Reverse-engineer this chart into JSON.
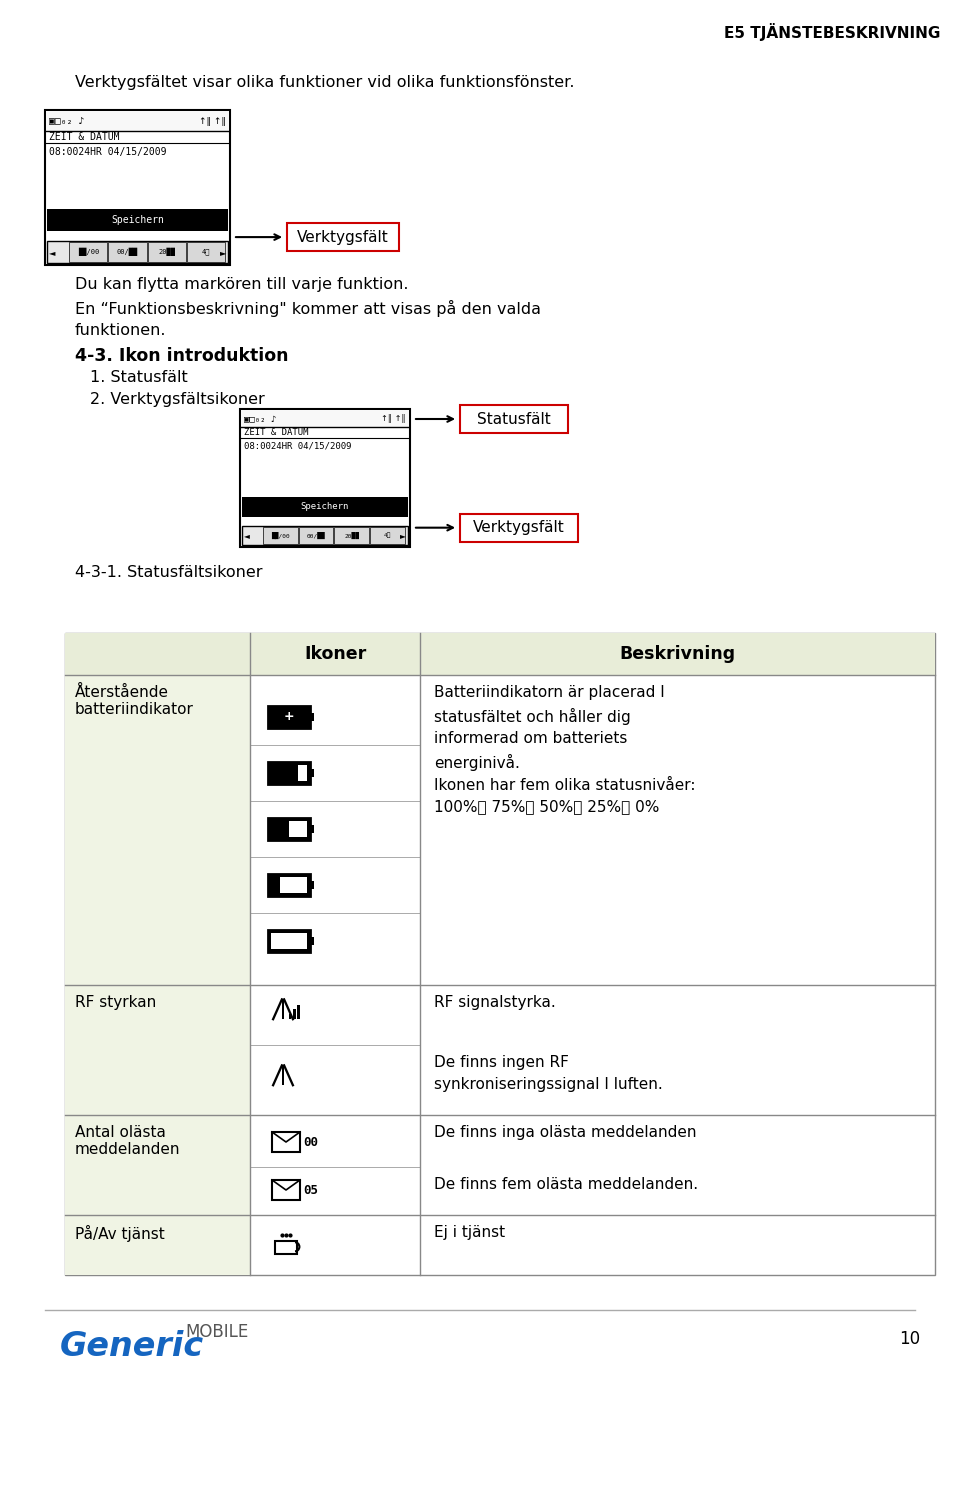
{
  "page_header": "E5 TJÄNSTEBESKRIVNING",
  "page_number": "10",
  "intro_text": "Verktygsfältet visar olika funktioner vid olika funktionsfönster.",
  "label_verktygsfalt_1": "Verktygsfält",
  "caption1": "Du kan flytta markören till varje funktion.",
  "caption2": "En “Funktionsbeskrivning\" kommer att visas på den valda",
  "caption3": "funktionen.",
  "section_header": "4-3. Ikon introduktion",
  "subsection1": "1. Statusfält",
  "subsection2": "2. Verktygsfältsikoner",
  "label_statusfalt": "Statusfält",
  "label_verktygsfalt_2": "Verktygsfält",
  "table_section": "4-3-1. Statusfältsikoner",
  "col1_header": "Ikoner",
  "col2_header": "Beskrivning",
  "desc_row1": "Batteriindikatorn är placerad I\nstatusfältet och håller dig\ninformerad om batteriets\nenerginivå.\nIkonen har fem olika statusnivåer:\n100%、 75%、 50%、 25%、 0%",
  "desc_row2a": "RF signalstyrka.",
  "desc_row2b": "De finns ingen RF\nsynkroniseringssignal I luften.",
  "desc_row3a": "De finns inga olästa meddelanden",
  "desc_row3b": "De finns fem olästa meddelanden.",
  "desc_row4": "Ej i tjänst",
  "label_row1": "Återstående\nbatteriindikator",
  "label_row2": "RF styrkan",
  "label_row3": "Antal olästa\nmeddelanden",
  "label_row4": "På/Av tjänst",
  "bg_color": "#ffffff",
  "table_header_bg": "#e8edd8",
  "table_row_bg": "#f0f4e4",
  "table_border_color": "#888888",
  "red_box_color": "#cc0000"
}
